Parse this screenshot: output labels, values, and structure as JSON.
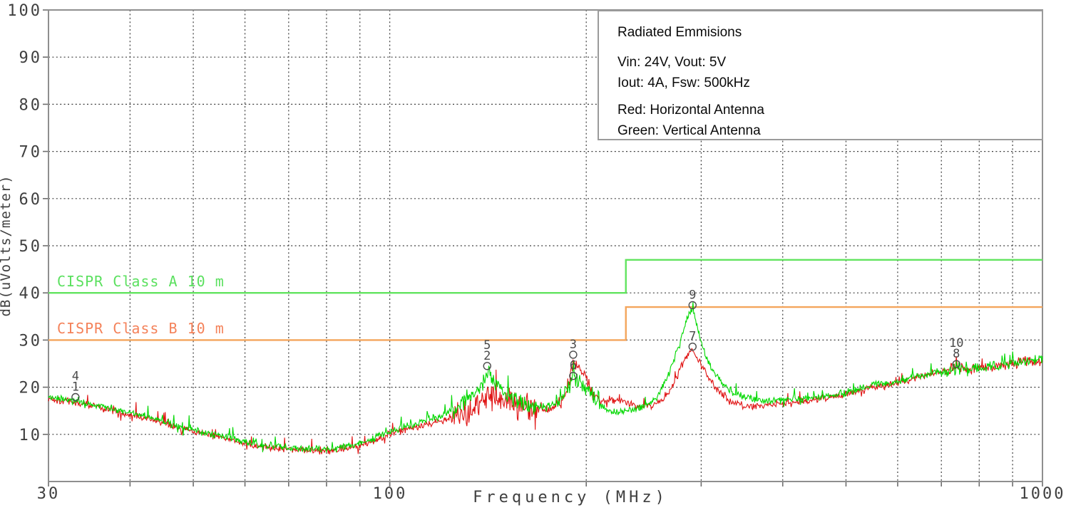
{
  "legend": {
    "title": "Radiated Emmisions",
    "power_line1": "Vin: 24V, Vout: 5V",
    "power_line2": "Iout: 4A, Fsw: 500kHz",
    "antenna_line1": "Red: Horizontal Antenna",
    "antenna_line2": "Green: Vertical Antenna"
  },
  "chart_data": {
    "type": "line",
    "title": "Radiated Emmisions",
    "xlabel": "Frequency (MHz)",
    "ylabel": "dB(uVolts/meter)",
    "x_scale": "log",
    "x_min": 30,
    "x_max": 1000,
    "y_min": 0,
    "y_max": 100,
    "grid": true,
    "x_tick_labels": [
      "30",
      "100",
      "1000"
    ],
    "x_tick_values": [
      30,
      100,
      1000
    ],
    "x_grid_values": [
      40,
      50,
      60,
      70,
      80,
      90,
      100,
      200,
      300,
      400,
      500,
      600,
      700,
      800,
      900
    ],
    "y_tick_labels": [
      "100",
      "90",
      "80",
      "70",
      "60",
      "50",
      "40",
      "30",
      "20",
      "10"
    ],
    "y_tick_values": [
      100,
      90,
      80,
      70,
      60,
      50,
      40,
      30,
      20,
      10
    ],
    "grid_color": "#3d3d3d",
    "axis_color": "#8f8f8f",
    "text_color": "#3f3f3f",
    "limit_lines": [
      {
        "label": "CISPR Class A 10 m",
        "line_color": "#62e45f",
        "text_color": "#5be05f",
        "points": [
          [
            30,
            40
          ],
          [
            230,
            40
          ],
          [
            230,
            47
          ],
          [
            1000,
            47
          ]
        ]
      },
      {
        "label": "CISPR Class B 10 m",
        "line_color": "#f4a55c",
        "text_color": "#f4825a",
        "points": [
          [
            30,
            30
          ],
          [
            230,
            30
          ],
          [
            230,
            37
          ],
          [
            1000,
            37
          ]
        ]
      }
    ],
    "series": [
      {
        "name": "Horizontal Antenna",
        "color": "#e01414",
        "anchors": [
          [
            30,
            17.6
          ],
          [
            34,
            16.4
          ],
          [
            38,
            14.9
          ],
          [
            43,
            13.1
          ],
          [
            48,
            11.2
          ],
          [
            52,
            10.0
          ],
          [
            56,
            9.1
          ],
          [
            60,
            8.1
          ],
          [
            64,
            7.4
          ],
          [
            70,
            6.8
          ],
          [
            76,
            6.6
          ],
          [
            82,
            6.6
          ],
          [
            88,
            7.3
          ],
          [
            95,
            8.8
          ],
          [
            100,
            10.1
          ],
          [
            110,
            11.6
          ],
          [
            122,
            13.2
          ],
          [
            132,
            15.0
          ],
          [
            141,
            17.8
          ],
          [
            148,
            17.2
          ],
          [
            156,
            16.2
          ],
          [
            166,
            15.4
          ],
          [
            176,
            15.4
          ],
          [
            183,
            17.0
          ],
          [
            188,
            21.0
          ],
          [
            191,
            25.8
          ],
          [
            194,
            25.2
          ],
          [
            198,
            23.0
          ],
          [
            204,
            19.5
          ],
          [
            210,
            17.0
          ],
          [
            218,
            17.2
          ],
          [
            224,
            17.3
          ],
          [
            230,
            16.8
          ],
          [
            240,
            15.9
          ],
          [
            252,
            16.0
          ],
          [
            262,
            17.2
          ],
          [
            272,
            20.5
          ],
          [
            281,
            25.0
          ],
          [
            287,
            27.4
          ],
          [
            291,
            27.9
          ],
          [
            296,
            26.0
          ],
          [
            302,
            24.0
          ],
          [
            310,
            21.5
          ],
          [
            320,
            19.0
          ],
          [
            330,
            17.3
          ],
          [
            342,
            16.2
          ],
          [
            356,
            15.9
          ],
          [
            372,
            16.1
          ],
          [
            395,
            16.4
          ],
          [
            420,
            16.8
          ],
          [
            450,
            17.2
          ],
          [
            480,
            18.0
          ],
          [
            515,
            19.0
          ],
          [
            545,
            19.8
          ],
          [
            575,
            20.3
          ],
          [
            605,
            21.0
          ],
          [
            640,
            22.0
          ],
          [
            675,
            23.0
          ],
          [
            705,
            23.5
          ],
          [
            738,
            24.3
          ],
          [
            765,
            23.9
          ],
          [
            795,
            24.1
          ],
          [
            830,
            24.3
          ],
          [
            865,
            24.6
          ],
          [
            900,
            25.1
          ],
          [
            935,
            25.4
          ],
          [
            965,
            25.2
          ],
          [
            1000,
            25.4
          ]
        ]
      },
      {
        "name": "Vertical Antenna",
        "color": "#00d800",
        "anchors": [
          [
            30,
            18.0
          ],
          [
            34,
            16.8
          ],
          [
            38,
            15.3
          ],
          [
            43,
            13.5
          ],
          [
            48,
            11.6
          ],
          [
            52,
            10.4
          ],
          [
            56,
            9.5
          ],
          [
            60,
            8.5
          ],
          [
            64,
            7.8
          ],
          [
            70,
            7.1
          ],
          [
            76,
            6.9
          ],
          [
            82,
            6.9
          ],
          [
            88,
            7.7
          ],
          [
            95,
            9.2
          ],
          [
            100,
            10.7
          ],
          [
            110,
            12.4
          ],
          [
            122,
            14.2
          ],
          [
            132,
            17.0
          ],
          [
            138,
            20.5
          ],
          [
            141,
            22.8
          ],
          [
            144,
            21.5
          ],
          [
            150,
            18.5
          ],
          [
            158,
            16.8
          ],
          [
            166,
            16.0
          ],
          [
            176,
            16.0
          ],
          [
            183,
            17.5
          ],
          [
            188,
            20.0
          ],
          [
            191,
            22.3
          ],
          [
            194,
            21.8
          ],
          [
            198,
            20.5
          ],
          [
            204,
            18.0
          ],
          [
            210,
            16.0
          ],
          [
            218,
            15.0
          ],
          [
            224,
            14.7
          ],
          [
            232,
            15.0
          ],
          [
            242,
            15.6
          ],
          [
            252,
            16.8
          ],
          [
            260,
            19.0
          ],
          [
            268,
            23.0
          ],
          [
            276,
            28.0
          ],
          [
            283,
            33.0
          ],
          [
            288,
            36.2
          ],
          [
            291,
            36.7
          ],
          [
            294,
            34.5
          ],
          [
            298,
            31.0
          ],
          [
            304,
            27.0
          ],
          [
            312,
            23.5
          ],
          [
            322,
            21.0
          ],
          [
            334,
            19.0
          ],
          [
            348,
            18.0
          ],
          [
            364,
            17.4
          ],
          [
            382,
            17.1
          ],
          [
            400,
            17.3
          ],
          [
            430,
            17.7
          ],
          [
            465,
            18.1
          ],
          [
            500,
            18.9
          ],
          [
            530,
            19.8
          ],
          [
            560,
            20.9
          ],
          [
            590,
            21.0
          ],
          [
            620,
            21.7
          ],
          [
            650,
            22.4
          ],
          [
            680,
            23.0
          ],
          [
            710,
            23.4
          ],
          [
            738,
            23.9
          ],
          [
            768,
            23.6
          ],
          [
            800,
            24.1
          ],
          [
            835,
            24.4
          ],
          [
            870,
            24.7
          ],
          [
            905,
            25.0
          ],
          [
            940,
            25.4
          ],
          [
            970,
            25.6
          ],
          [
            1000,
            26.0
          ]
        ]
      }
    ],
    "markers": [
      {
        "label": "4",
        "f": 33,
        "v": 17.9,
        "stack": 1,
        "circle": false
      },
      {
        "label": "1",
        "f": 33,
        "v": 17.9,
        "stack": 0,
        "circle": true
      },
      {
        "label": "5",
        "f": 141,
        "v": 24.5,
        "stack": 1,
        "circle": false
      },
      {
        "label": "2",
        "f": 141,
        "v": 24.5,
        "stack": 0,
        "circle": true
      },
      {
        "label": "3",
        "f": 191,
        "v": 26.9,
        "stack": 0,
        "circle": true
      },
      {
        "label": "6",
        "f": 191,
        "v": 22.4,
        "stack": 0,
        "circle": true
      },
      {
        "label": "9",
        "f": 291,
        "v": 37.4,
        "stack": 0,
        "circle": true
      },
      {
        "label": "7",
        "f": 291,
        "v": 28.6,
        "stack": 0,
        "circle": true
      },
      {
        "label": "10",
        "f": 738,
        "v": 24.9,
        "stack": 1,
        "circle": false
      },
      {
        "label": "8",
        "f": 738,
        "v": 24.9,
        "stack": 0,
        "circle": true
      }
    ],
    "noise": {
      "seed": 1337,
      "base_amp": 0.9,
      "spike_prob": 0.06,
      "spike_amp": 1.8,
      "boosts": [
        {
          "series": 0,
          "f1": 124,
          "f2": 168,
          "amp": 2.6
        },
        {
          "series": 1,
          "f1": 124,
          "f2": 168,
          "amp": 1.2
        },
        {
          "series": 0,
          "f1": 180,
          "f2": 206,
          "amp": 1.4
        },
        {
          "series": 1,
          "f1": 180,
          "f2": 206,
          "amp": 1.0
        },
        {
          "series": 0,
          "f1": 700,
          "f2": 1000,
          "amp": 0.5
        },
        {
          "series": 1,
          "f1": 700,
          "f2": 1000,
          "amp": 0.5
        }
      ]
    }
  }
}
